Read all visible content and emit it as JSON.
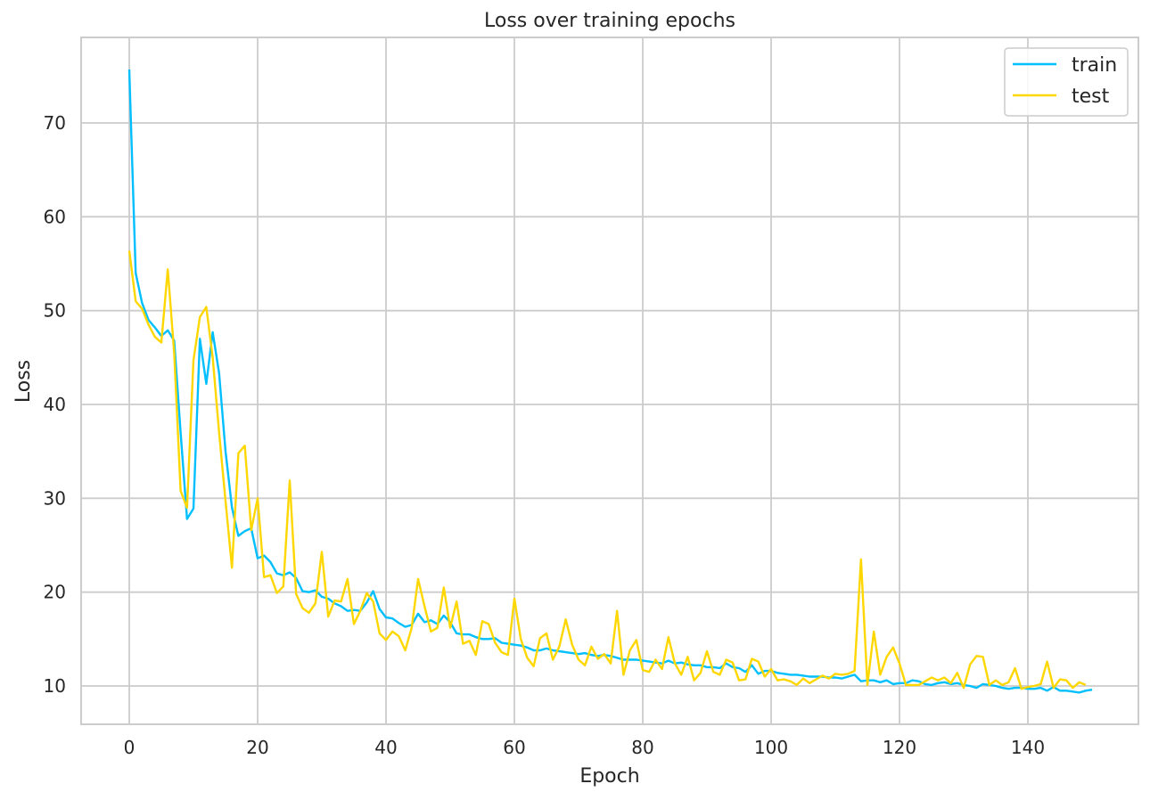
{
  "chart_data": {
    "type": "line",
    "title": "Loss over training epochs",
    "xlabel": "Epoch",
    "ylabel": "Loss",
    "xlim": [
      -7.5,
      156.5
    ],
    "ylim": [
      5.9,
      78.9
    ],
    "xticks": [
      0,
      20,
      40,
      60,
      80,
      100,
      120,
      140
    ],
    "yticks": [
      10,
      20,
      30,
      40,
      50,
      60,
      70
    ],
    "grid": true,
    "legend_position": "upper right",
    "legend": [
      "train",
      "test"
    ],
    "colors": {
      "train": "#00BFFF",
      "test": "#FFD700"
    },
    "x_start": 0,
    "series": [
      {
        "name": "train",
        "color": "#00BFFF",
        "values": [
          75.7,
          54.0,
          50.8,
          49.0,
          48.2,
          47.3,
          47.9,
          46.8,
          37.0,
          27.8,
          28.9,
          47.0,
          42.2,
          47.7,
          43.3,
          35.0,
          29.0,
          26.0,
          26.5,
          26.8,
          23.6,
          23.9,
          23.2,
          22.0,
          21.8,
          22.1,
          21.5,
          20.1,
          20.0,
          20.2,
          19.5,
          19.3,
          18.8,
          18.5,
          18.0,
          18.1,
          18.0,
          18.9,
          20.1,
          18.2,
          17.3,
          17.2,
          16.7,
          16.3,
          16.5,
          17.7,
          16.8,
          17.0,
          16.6,
          17.5,
          16.8,
          15.6,
          15.5,
          15.5,
          15.2,
          15.0,
          15.0,
          15.1,
          14.6,
          14.5,
          14.4,
          14.3,
          14.1,
          13.8,
          13.8,
          14.0,
          13.8,
          13.7,
          13.6,
          13.5,
          13.4,
          13.5,
          13.3,
          13.2,
          13.3,
          13.2,
          13.0,
          12.8,
          12.8,
          12.8,
          12.7,
          12.6,
          12.5,
          12.4,
          12.7,
          12.4,
          12.5,
          12.3,
          12.2,
          12.2,
          12.0,
          12.0,
          11.9,
          12.4,
          12.0,
          11.9,
          11.5,
          12.2,
          11.3,
          11.6,
          11.6,
          11.4,
          11.3,
          11.2,
          11.2,
          11.1,
          11.0,
          11.0,
          11.0,
          10.9,
          10.9,
          10.8,
          11.0,
          11.2,
          10.5,
          10.6,
          10.6,
          10.4,
          10.6,
          10.2,
          10.3,
          10.3,
          10.6,
          10.5,
          10.2,
          10.1,
          10.3,
          10.4,
          10.2,
          10.3,
          10.1,
          10.0,
          9.8,
          10.2,
          10.1,
          10.0,
          9.8,
          9.7,
          9.8,
          9.8,
          9.7,
          9.7,
          9.8,
          9.5,
          9.9,
          9.5,
          9.5,
          9.4,
          9.3,
          9.5,
          9.6
        ]
      },
      {
        "name": "test",
        "color": "#FFD700",
        "values": [
          56.4,
          51.0,
          50.2,
          48.5,
          47.2,
          46.6,
          54.4,
          45.5,
          30.8,
          29.0,
          44.7,
          49.3,
          50.4,
          45.0,
          37.0,
          29.7,
          22.6,
          34.8,
          35.6,
          26.6,
          30.0,
          21.6,
          21.8,
          19.9,
          20.6,
          31.9,
          19.8,
          18.3,
          17.8,
          18.8,
          24.3,
          17.4,
          19.1,
          19.0,
          21.4,
          16.6,
          18.0,
          19.9,
          19.0,
          15.6,
          14.9,
          15.8,
          15.3,
          13.8,
          16.2,
          21.4,
          18.5,
          15.8,
          16.2,
          20.5,
          16.2,
          19.0,
          14.5,
          14.8,
          13.3,
          16.9,
          16.6,
          14.6,
          13.6,
          13.3,
          19.3,
          15.0,
          13.0,
          12.1,
          15.1,
          15.6,
          12.8,
          14.2,
          17.1,
          14.4,
          12.8,
          12.2,
          14.2,
          12.9,
          13.4,
          12.4,
          18.0,
          11.2,
          13.8,
          14.9,
          11.7,
          11.5,
          12.8,
          11.8,
          15.2,
          12.4,
          11.2,
          13.1,
          10.6,
          11.4,
          13.7,
          11.5,
          11.2,
          12.8,
          12.5,
          10.6,
          10.7,
          12.9,
          12.6,
          11.0,
          11.8,
          10.6,
          10.7,
          10.5,
          10.1,
          10.8,
          10.3,
          10.7,
          11.1,
          10.8,
          11.3,
          11.2,
          11.3,
          11.6,
          23.5,
          10.1,
          15.8,
          11.2,
          13.1,
          14.1,
          12.4,
          10.1,
          10.1,
          10.1,
          10.5,
          10.9,
          10.6,
          10.9,
          10.3,
          11.4,
          9.8,
          12.3,
          13.2,
          13.1,
          10.1,
          10.6,
          10.1,
          10.4,
          11.9,
          9.7,
          9.9,
          10.0,
          10.2,
          12.6,
          9.8,
          10.7,
          10.6,
          9.8,
          10.4,
          10.1
        ]
      }
    ]
  }
}
